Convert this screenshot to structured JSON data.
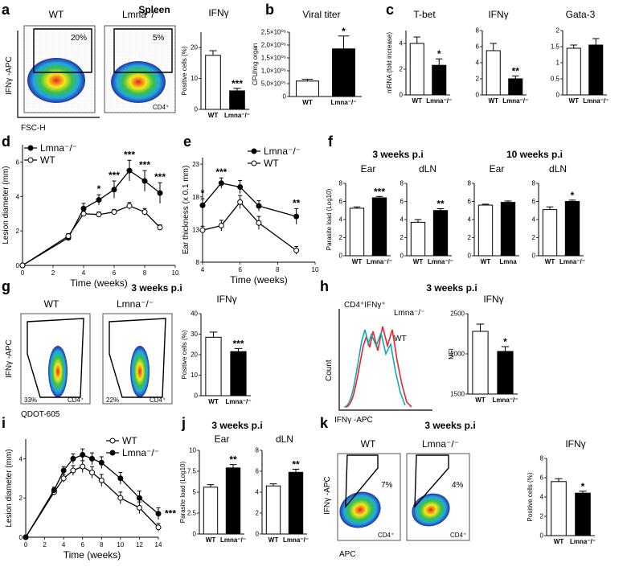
{
  "panels": {
    "a": {
      "label": "a",
      "title": "Spleen",
      "flow": {
        "y_label": "IFNγ -APC",
        "x_label": "FSC-H",
        "plots": [
          {
            "group": "WT",
            "percent": "20%"
          },
          {
            "group": "Lmna⁻/⁻",
            "percent": "5%",
            "gate_label": "CD4⁺"
          }
        ]
      }
    },
    "b": {
      "label": "b"
    },
    "c": {
      "label": "c"
    },
    "d": {
      "label": "d"
    },
    "e": {
      "label": "e"
    },
    "f": {
      "label": "f",
      "header_1": "3 weeks p.i",
      "header_2": "10 weeks p.i"
    },
    "g": {
      "label": "g",
      "header": "3 weeks p.i",
      "flow": {
        "y_label": "IFNγ -APC",
        "x_label": "QDOT-605",
        "plots": [
          {
            "group": "WT",
            "percent": "33%",
            "gate_label": "CD4⁺"
          },
          {
            "group": "Lmna⁻/⁻",
            "percent": "22%",
            "gate_label": "CD4⁺"
          }
        ]
      }
    },
    "h": {
      "label": "h",
      "header": "3 weeks p.i",
      "hist": {
        "title": "CD4⁺IFNγ⁺",
        "y_label": "Count",
        "x_label": "IFNγ -APC",
        "series": [
          "Lmna⁻/⁻",
          "WT"
        ]
      }
    },
    "i": {
      "label": "i"
    },
    "j": {
      "label": "j",
      "header": "3 weeks p.i"
    },
    "k": {
      "label": "k",
      "header": "3 weeks p.i",
      "flow": {
        "y_label": "IFNγ -APC",
        "x_label": "APC",
        "plots": [
          {
            "group": "WT",
            "percent": "7%",
            "gate_label": "CD4⁺"
          },
          {
            "group": "Lmna⁻/⁻",
            "percent": "4%",
            "gate_label": "CD4⁺"
          }
        ]
      }
    }
  },
  "colors": {
    "wt_line": "#e8232b",
    "lmna_line": "#11a8b3",
    "bar_ko": "#000000",
    "bar_wt": "#ffffff"
  },
  "chart_data": [
    {
      "id": "a-bar",
      "type": "bar",
      "title": "IFNγ",
      "ylabel": "Positive cells (%)",
      "categories": [
        "WT",
        "Lmna⁻/⁻"
      ],
      "values": [
        17.5,
        6.0
      ],
      "errors": [
        1.5,
        0.8
      ],
      "ylim": [
        0,
        25
      ],
      "significance": [
        "",
        "***"
      ]
    },
    {
      "id": "b-bar",
      "type": "bar",
      "title": "Viral titer",
      "ylabel": "CFU/mg organ",
      "categories": [
        "WT",
        "Lmna⁻/⁻"
      ],
      "values": [
        0.6,
        1.85
      ],
      "errors": [
        0.07,
        0.5
      ],
      "ylim": [
        0,
        2.5
      ],
      "yticks": [
        0,
        0.5,
        1.0,
        1.5,
        2.0,
        2.5
      ],
      "ytick_labels": [
        "0",
        "5,0×10⁰⁵",
        "1,0×10⁰⁶",
        "1,5×10⁰⁶",
        "2,0×10⁰⁶",
        "2,5×10⁰⁶"
      ],
      "significance": [
        "",
        "*"
      ]
    },
    {
      "id": "c1-bar",
      "type": "bar",
      "title": "T-bet",
      "ylabel": "mRNA (fold increase)",
      "categories": [
        "WT",
        "Lmna⁻/⁻"
      ],
      "values": [
        4.0,
        2.3
      ],
      "errors": [
        0.5,
        0.5
      ],
      "ylim": [
        0,
        5
      ],
      "significance": [
        "",
        "*"
      ]
    },
    {
      "id": "c2-bar",
      "type": "bar",
      "title": "IFNγ",
      "categories": [
        "WT",
        "Lmna⁻/⁻"
      ],
      "values": [
        5.5,
        2.0
      ],
      "errors": [
        0.9,
        0.35
      ],
      "ylim": [
        0,
        8
      ],
      "significance": [
        "",
        "**"
      ]
    },
    {
      "id": "c3-bar",
      "type": "bar",
      "title": "Gata-3",
      "categories": [
        "WT",
        "Lmna⁻/⁻"
      ],
      "values": [
        1.45,
        1.55
      ],
      "errors": [
        0.1,
        0.2
      ],
      "ylim": [
        0,
        2
      ],
      "significance": [
        "",
        ""
      ]
    },
    {
      "id": "d-line",
      "type": "line",
      "xlabel": "Time (weeks)",
      "ylabel": "Lesion diameter (mm)",
      "xlim": [
        0,
        10
      ],
      "ylim": [
        0,
        7
      ],
      "x": [
        0,
        3,
        4,
        5,
        6,
        7,
        8,
        9
      ],
      "series": [
        {
          "name": "Lmna⁻/⁻",
          "marker": "filled",
          "values": [
            0,
            1.6,
            3.3,
            3.8,
            4.4,
            5.5,
            4.9,
            4.2
          ],
          "errors": [
            0.05,
            0.15,
            0.3,
            0.3,
            0.5,
            0.6,
            0.6,
            0.6
          ]
        },
        {
          "name": "WT",
          "marker": "open",
          "values": [
            0,
            1.7,
            3.0,
            2.95,
            3.1,
            3.45,
            3.1,
            2.2
          ],
          "errors": [
            0.05,
            0.15,
            0.15,
            0.15,
            0.15,
            0.2,
            0.2,
            0.15
          ]
        }
      ],
      "significance": [
        {
          "x": 5,
          "text": "*"
        },
        {
          "x": 6,
          "text": "***"
        },
        {
          "x": 7,
          "text": "***"
        },
        {
          "x": 8,
          "text": "***"
        },
        {
          "x": 9,
          "text": "***"
        }
      ]
    },
    {
      "id": "e-line",
      "type": "line",
      "xlabel": "Time (weeks)",
      "ylabel": "Ear thickness (x 0.1 mm)",
      "xlim": [
        4,
        10
      ],
      "ylim": [
        8,
        24
      ],
      "x": [
        4,
        5,
        6,
        7,
        9
      ],
      "series": [
        {
          "name": "Lmna⁻/⁻",
          "marker": "filled",
          "values": [
            16.7,
            20.1,
            19.5,
            16.6,
            15.0
          ],
          "errors": [
            1.0,
            0.8,
            1.0,
            0.8,
            1.2
          ]
        },
        {
          "name": "WT",
          "marker": "open",
          "values": [
            12.9,
            13.6,
            17.2,
            14.0,
            9.8
          ],
          "errors": [
            0.6,
            0.8,
            1.0,
            1.0,
            0.6
          ]
        }
      ],
      "significance": [
        {
          "x": 4,
          "text": "*"
        },
        {
          "x": 5,
          "text": "***"
        },
        {
          "x": 9,
          "text": "**"
        }
      ]
    },
    {
      "id": "f1-bar",
      "type": "bar",
      "title": "Ear",
      "ylabel": "Parasite load (Log10)",
      "categories": [
        "WT",
        "Lmna⁻/⁻"
      ],
      "values": [
        5.25,
        6.4
      ],
      "errors": [
        0.15,
        0.15
      ],
      "ylim": [
        0,
        8
      ],
      "significance": [
        "",
        "***"
      ]
    },
    {
      "id": "f2-bar",
      "type": "bar",
      "title": "dLN",
      "categories": [
        "WT",
        "Lmna⁻/⁻"
      ],
      "values": [
        3.7,
        5.0
      ],
      "errors": [
        0.3,
        0.2
      ],
      "ylim": [
        0,
        8
      ],
      "significance": [
        "",
        "**"
      ]
    },
    {
      "id": "f3-bar",
      "type": "bar",
      "title": "Ear",
      "categories": [
        "WT",
        "Lmna"
      ],
      "values": [
        5.6,
        5.9
      ],
      "errors": [
        0.1,
        0.15
      ],
      "ylim": [
        0,
        8
      ],
      "significance": [
        "",
        ""
      ]
    },
    {
      "id": "f4-bar",
      "type": "bar",
      "title": "dLN",
      "categories": [
        "WT",
        "Lmna⁻/⁻"
      ],
      "values": [
        5.1,
        6.0
      ],
      "errors": [
        0.3,
        0.15
      ],
      "ylim": [
        0,
        8
      ],
      "significance": [
        "",
        "*"
      ]
    },
    {
      "id": "g-bar",
      "type": "bar",
      "title": "IFNγ",
      "ylabel": "Positive cells (%)",
      "categories": [
        "WT",
        "Lmna⁻/⁻"
      ],
      "values": [
        28.5,
        21.5
      ],
      "errors": [
        2.5,
        1.5
      ],
      "ylim": [
        0,
        40
      ],
      "significance": [
        "",
        "***"
      ]
    },
    {
      "id": "h-bar",
      "type": "bar",
      "title": "IFNγ",
      "ylabel": "MFI",
      "categories": [
        "WT",
        "Lmna⁻/⁻"
      ],
      "values": [
        2280,
        2030
      ],
      "errors": [
        90,
        60
      ],
      "ylim": [
        1500,
        2500
      ],
      "yticks": [
        1500,
        2000,
        2500
      ],
      "significance": [
        "",
        "*"
      ]
    },
    {
      "id": "i-line",
      "type": "line",
      "xlabel": "Time (weeks)",
      "ylabel": "Lesion diameter (mm)",
      "xlim": [
        0,
        14
      ],
      "ylim": [
        0,
        5
      ],
      "x": [
        0,
        3,
        4,
        5,
        6,
        7,
        8,
        10,
        12,
        14
      ],
      "series": [
        {
          "name": "WT",
          "marker": "open",
          "values": [
            0,
            2.3,
            3.0,
            3.4,
            3.6,
            3.3,
            2.9,
            2.0,
            1.5,
            0.5
          ],
          "errors": [
            0.05,
            0.15,
            0.2,
            0.25,
            0.3,
            0.3,
            0.3,
            0.3,
            0.3,
            0.2
          ]
        },
        {
          "name": "Lmna⁻/⁻",
          "marker": "filled",
          "values": [
            0,
            2.4,
            3.4,
            4.0,
            4.2,
            4.0,
            3.8,
            3.0,
            2.0,
            1.2
          ],
          "errors": [
            0.05,
            0.15,
            0.2,
            0.25,
            0.3,
            0.3,
            0.3,
            0.3,
            0.35,
            0.3
          ]
        }
      ],
      "significance": [
        {
          "x": 14,
          "text": "***"
        }
      ]
    },
    {
      "id": "j1-bar",
      "type": "bar",
      "title": "Ear",
      "ylabel": "Parasite load (Log10)",
      "categories": [
        "WT",
        "Lmna⁻/⁻"
      ],
      "values": [
        5.6,
        7.9
      ],
      "errors": [
        0.3,
        0.4
      ],
      "ylim": [
        0,
        10
      ],
      "significance": [
        "",
        "**"
      ]
    },
    {
      "id": "j2-bar",
      "type": "bar",
      "title": "dLN",
      "categories": [
        "WT",
        "Lmna⁻/⁻"
      ],
      "values": [
        4.6,
        5.9
      ],
      "errors": [
        0.2,
        0.3
      ],
      "ylim": [
        0,
        8
      ],
      "significance": [
        "",
        "**"
      ]
    },
    {
      "id": "k-bar",
      "type": "bar",
      "title": "IFNγ",
      "ylabel": "Positive cells (%)",
      "categories": [
        "WT",
        "Lmna⁻/⁻"
      ],
      "values": [
        5.6,
        4.4
      ],
      "errors": [
        0.3,
        0.2
      ],
      "ylim": [
        0,
        8
      ],
      "significance": [
        "",
        "*"
      ]
    }
  ]
}
